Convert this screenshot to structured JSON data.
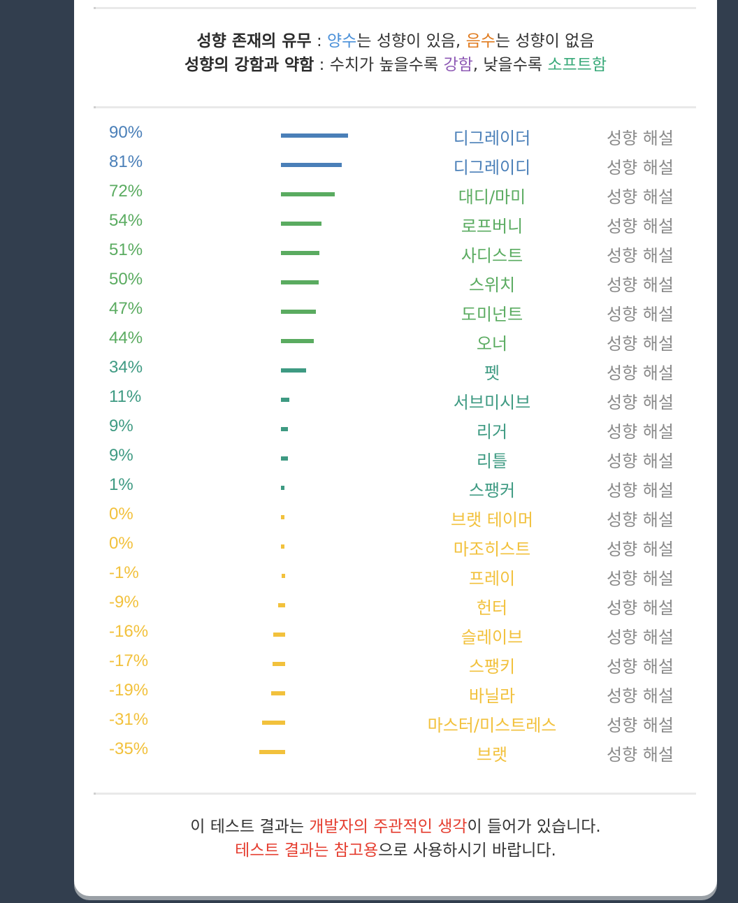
{
  "legend": {
    "line1": {
      "head": "성향 존재의 유무",
      "sep": " : ",
      "pos": "양수",
      "pos_rest": "는 성향이 있음, ",
      "neg": "음수",
      "neg_rest": "는 성향이 없음"
    },
    "line2": {
      "head": "성향의 강함과 약함",
      "sep": " : ",
      "pre": "수치가 높을수록 ",
      "strong": "강함",
      "mid": ", 낮을수록 ",
      "soft": "소프트함"
    }
  },
  "colors": {
    "blue": "#4a7fb8",
    "green": "#5aab60",
    "teal": "#3e9a82",
    "yellow": "#f2c13c"
  },
  "rows": [
    {
      "pct": "90%",
      "value": 90,
      "name": "디그레이더",
      "desc": "성향 해설",
      "color": "#4a7fb8"
    },
    {
      "pct": "81%",
      "value": 81,
      "name": "디그레이디",
      "desc": "성향 해설",
      "color": "#4a7fb8"
    },
    {
      "pct": "72%",
      "value": 72,
      "name": "대디/마미",
      "desc": "성향 해설",
      "color": "#5aab60"
    },
    {
      "pct": "54%",
      "value": 54,
      "name": "로프버니",
      "desc": "성향 해설",
      "color": "#5aab60"
    },
    {
      "pct": "51%",
      "value": 51,
      "name": "사디스트",
      "desc": "성향 해설",
      "color": "#5aab60"
    },
    {
      "pct": "50%",
      "value": 50,
      "name": "스위치",
      "desc": "성향 해설",
      "color": "#5aab60"
    },
    {
      "pct": "47%",
      "value": 47,
      "name": "도미넌트",
      "desc": "성향 해설",
      "color": "#5aab60"
    },
    {
      "pct": "44%",
      "value": 44,
      "name": "오너",
      "desc": "성향 해설",
      "color": "#5aab60"
    },
    {
      "pct": "34%",
      "value": 34,
      "name": "펫",
      "desc": "성향 해설",
      "color": "#3e9a82"
    },
    {
      "pct": "11%",
      "value": 11,
      "name": "서브미시브",
      "desc": "성향 해설",
      "color": "#3e9a82"
    },
    {
      "pct": "9%",
      "value": 9,
      "name": "리거",
      "desc": "성향 해설",
      "color": "#3e9a82"
    },
    {
      "pct": "9%",
      "value": 9,
      "name": "리틀",
      "desc": "성향 해설",
      "color": "#3e9a82"
    },
    {
      "pct": "1%",
      "value": 1,
      "name": "스팽커",
      "desc": "성향 해설",
      "color": "#3e9a82"
    },
    {
      "pct": "0%",
      "value": 0,
      "name": "브랫 테이머",
      "desc": "성향 해설",
      "color": "#f2c13c"
    },
    {
      "pct": "0%",
      "value": 0,
      "name": "마조히스트",
      "desc": "성향 해설",
      "color": "#f2c13c"
    },
    {
      "pct": "-1%",
      "value": -1,
      "name": "프레이",
      "desc": "성향 해설",
      "color": "#f2c13c"
    },
    {
      "pct": "-9%",
      "value": -9,
      "name": "헌터",
      "desc": "성향 해설",
      "color": "#f2c13c"
    },
    {
      "pct": "-16%",
      "value": -16,
      "name": "슬레이브",
      "desc": "성향 해설",
      "color": "#f2c13c"
    },
    {
      "pct": "-17%",
      "value": -17,
      "name": "스팽키",
      "desc": "성향 해설",
      "color": "#f2c13c"
    },
    {
      "pct": "-19%",
      "value": -19,
      "name": "바닐라",
      "desc": "성향 해설",
      "color": "#f2c13c"
    },
    {
      "pct": "-31%",
      "value": -31,
      "name": "마스터/미스트레스",
      "desc": "성향 해설",
      "color": "#f2c13c"
    },
    {
      "pct": "-35%",
      "value": -35,
      "name": "브랫",
      "desc": "성향 해설",
      "color": "#f2c13c"
    }
  ],
  "footer": {
    "line1_pre": "이 테스트 결과는 ",
    "line1_red": "개발자의 주관적인 생각",
    "line1_post": "이 들어가 있습니다.",
    "line2_red": "테스트 결과는 참고용",
    "line2_post": "으로 사용하시기 바랍니다."
  }
}
